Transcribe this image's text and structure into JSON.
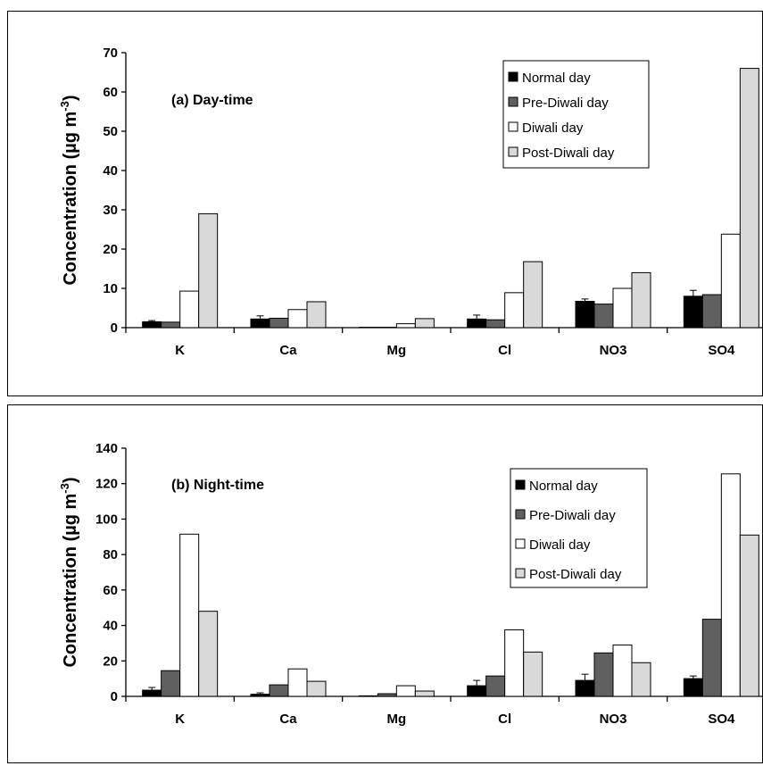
{
  "chart_data": [
    {
      "type": "bar",
      "title": "(a) Day-time",
      "ylabel_main": "Concentration (µg m",
      "ylabel_sup": "-3",
      "ylabel_close": ")",
      "ylim": [
        0,
        70
      ],
      "yticks": [
        0,
        10,
        20,
        30,
        40,
        50,
        60,
        70
      ],
      "legend_position": "top-right",
      "categories": [
        "K",
        "Ca",
        "Mg",
        "Cl",
        "NO3",
        "SO4"
      ],
      "series": [
        {
          "name": "Normal day",
          "color": "#000000",
          "values": [
            1.5,
            2.2,
            0.1,
            2.2,
            6.7,
            8.0
          ],
          "errors": [
            0.3,
            0.8,
            0,
            1.0,
            0.6,
            1.5
          ]
        },
        {
          "name": "Pre-Diwali day",
          "color": "#606060",
          "values": [
            1.4,
            2.4,
            0.1,
            2.0,
            6.0,
            8.4
          ],
          "errors": [
            0,
            0,
            0,
            0,
            0,
            0
          ]
        },
        {
          "name": "Diwali day",
          "color": "#ffffff",
          "values": [
            9.3,
            4.6,
            1.0,
            8.9,
            10.0,
            23.8
          ],
          "errors": [
            0,
            0,
            0,
            0,
            0,
            0
          ]
        },
        {
          "name": "Post-Diwali day",
          "color": "#d9d9d9",
          "values": [
            29.0,
            6.6,
            2.3,
            16.8,
            14.0,
            66.0
          ],
          "errors": [
            0,
            0,
            0,
            0,
            0,
            0
          ]
        }
      ]
    },
    {
      "type": "bar",
      "title": "(b) Night-time",
      "ylabel_main": "Concentration (µg m",
      "ylabel_sup": "-3",
      "ylabel_close": ")",
      "ylim": [
        0,
        140
      ],
      "yticks": [
        0,
        20,
        40,
        60,
        80,
        100,
        120,
        140
      ],
      "legend_position": "top-right",
      "categories": [
        "K",
        "Ca",
        "Mg",
        "Cl",
        "NO3",
        "SO4"
      ],
      "series": [
        {
          "name": "Normal day",
          "color": "#000000",
          "values": [
            3.5,
            1.2,
            0.3,
            6.0,
            9.0,
            10.0
          ],
          "errors": [
            1.5,
            0.8,
            0,
            3.0,
            3.5,
            1.5
          ]
        },
        {
          "name": "Pre-Diwali day",
          "color": "#606060",
          "values": [
            14.5,
            6.5,
            1.5,
            11.5,
            24.5,
            43.5
          ],
          "errors": [
            0,
            0,
            0,
            0,
            0,
            0
          ]
        },
        {
          "name": "Diwali day",
          "color": "#ffffff",
          "values": [
            91.5,
            15.5,
            6.0,
            37.5,
            29.0,
            125.5
          ],
          "errors": [
            0,
            0,
            0,
            0,
            0,
            0
          ]
        },
        {
          "name": "Post-Diwali day",
          "color": "#d9d9d9",
          "values": [
            48.0,
            8.5,
            3.0,
            25.0,
            19.0,
            91.0
          ],
          "errors": [
            0,
            0,
            0,
            0,
            0,
            0
          ]
        }
      ]
    }
  ]
}
